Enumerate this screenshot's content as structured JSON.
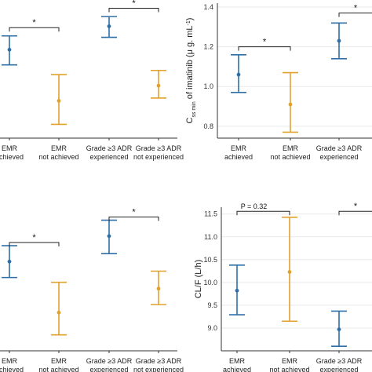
{
  "colors": {
    "achieved": "#2f6fa7",
    "not_achieved": "#e1a22d",
    "axis": "#333333",
    "grid": "#e9e9e9"
  },
  "chart_data": [
    {
      "type": "scatter",
      "id": "tl",
      "ylabel_parts": [],
      "yticks": [],
      "ylim": [
        0,
        10
      ],
      "categories": [
        {
          "line1": "EMR",
          "line2": "achieved"
        },
        {
          "line1": "EMR",
          "line2": "not achieved"
        },
        {
          "line1": "Grade ≥3 ADR",
          "line2": "experienced"
        },
        {
          "line1": "Grade ≥3 ADR",
          "line2": "not experienced"
        }
      ],
      "points": [
        {
          "cat": 0,
          "mean": 6.4,
          "low": 5.3,
          "high": 7.4,
          "group": "achieved"
        },
        {
          "cat": 1,
          "mean": 2.7,
          "low": 1.0,
          "high": 4.6,
          "group": "not_achieved"
        },
        {
          "cat": 2,
          "mean": 8.1,
          "low": 7.3,
          "high": 8.8,
          "group": "achieved"
        },
        {
          "cat": 3,
          "mean": 3.8,
          "low": 2.9,
          "high": 4.9,
          "group": "not_achieved"
        }
      ],
      "brackets": [
        {
          "from": 0,
          "to": 1,
          "label": "*",
          "y": 8.0
        },
        {
          "from": 2,
          "to": 3,
          "label": "*",
          "y": 9.4
        }
      ]
    },
    {
      "type": "scatter",
      "id": "tr",
      "ylabel_parts": [
        "C",
        "ss min",
        " of imatinib (μ g. mL",
        "-1",
        ")"
      ],
      "yticks": [
        0.8,
        1.0,
        1.2,
        1.4
      ],
      "ylim": [
        0.74,
        1.42
      ],
      "categories": [
        {
          "line1": "EMR",
          "line2": "achieved"
        },
        {
          "line1": "EMR",
          "line2": "not achieved"
        },
        {
          "line1": "Grade ≥3 ADR",
          "line2": "experienced"
        },
        {
          "line1": "Gr",
          "line2": "n"
        }
      ],
      "points": [
        {
          "cat": 0,
          "mean": 1.06,
          "low": 0.97,
          "high": 1.16,
          "group": "achieved"
        },
        {
          "cat": 1,
          "mean": 0.91,
          "low": 0.77,
          "high": 1.07,
          "group": "not_achieved"
        },
        {
          "cat": 2,
          "mean": 1.23,
          "low": 1.14,
          "high": 1.32,
          "group": "achieved"
        }
      ],
      "brackets": [
        {
          "from": 0,
          "to": 1,
          "label": "*",
          "y": 1.2
        },
        {
          "from": 2,
          "to": 3,
          "label": "*",
          "y": 1.37
        }
      ]
    },
    {
      "type": "scatter",
      "id": "bl",
      "ylabel_parts": [],
      "yticks": [],
      "ylim": [
        0,
        10
      ],
      "categories": [
        {
          "line1": "EMR",
          "line2": "achieved"
        },
        {
          "line1": "EMR",
          "line2": "not achieved"
        },
        {
          "line1": "Grade ≥3 ADR",
          "line2": "experienced"
        },
        {
          "line1": "Grade ≥3 ADR",
          "line2": "not experienced"
        }
      ],
      "points": [
        {
          "cat": 0,
          "mean": 5.6,
          "low": 4.6,
          "high": 6.6,
          "group": "achieved"
        },
        {
          "cat": 1,
          "mean": 2.4,
          "low": 1.0,
          "high": 4.3,
          "group": "not_achieved"
        },
        {
          "cat": 2,
          "mean": 7.2,
          "low": 6.1,
          "high": 8.2,
          "group": "achieved"
        },
        {
          "cat": 3,
          "mean": 3.9,
          "low": 2.9,
          "high": 5.0,
          "group": "not_achieved"
        }
      ],
      "brackets": [
        {
          "from": 0,
          "to": 1,
          "label": "*",
          "y": 6.8
        },
        {
          "from": 2,
          "to": 3,
          "label": "*",
          "y": 8.4
        }
      ]
    },
    {
      "type": "scatter",
      "id": "br",
      "ylabel_parts": [
        "CL/F (L/h)"
      ],
      "yticks": [
        9.0,
        9.5,
        10.0,
        10.5,
        11.0,
        11.5
      ],
      "ylim": [
        8.5,
        11.65
      ],
      "categories": [
        {
          "line1": "EMR",
          "line2": "achieved"
        },
        {
          "line1": "EMR",
          "line2": "not achieved"
        },
        {
          "line1": "Grade ≥3 ADR",
          "line2": "experienced"
        },
        {
          "line1": "Ga",
          "line2": "e"
        }
      ],
      "points": [
        {
          "cat": 0,
          "mean": 9.82,
          "low": 9.29,
          "high": 10.38,
          "group": "achieved"
        },
        {
          "cat": 1,
          "mean": 10.23,
          "low": 9.15,
          "high": 11.43,
          "group": "not_achieved"
        },
        {
          "cat": 2,
          "mean": 8.97,
          "low": 8.6,
          "high": 9.37,
          "group": "achieved"
        }
      ],
      "brackets": [
        {
          "from": 0,
          "to": 1,
          "label": "P = 0.32",
          "y": 11.56
        },
        {
          "from": 2,
          "to": 3,
          "label": "*",
          "y": 11.56
        }
      ]
    }
  ]
}
